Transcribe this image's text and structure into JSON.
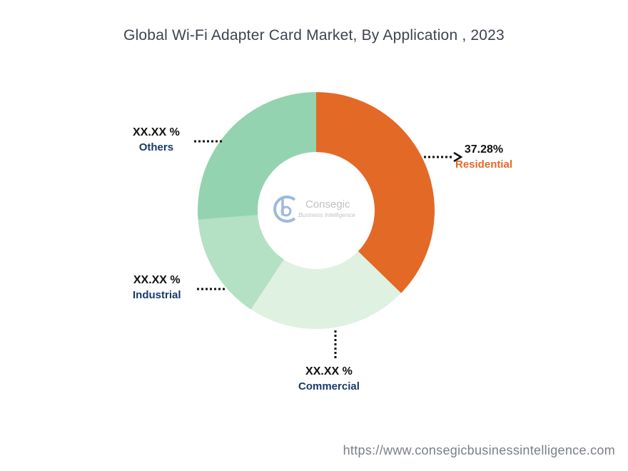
{
  "chart_data": {
    "type": "pie",
    "variant": "donut",
    "title": "Global Wi-Fi Adapter Card Market, By Application , 2023",
    "categories": [
      "Residential",
      "Commercial",
      "Industrial",
      "Others"
    ],
    "values": [
      37.28,
      22.0,
      14.5,
      26.22
    ],
    "value_labels": [
      "37.28%",
      "XX.XX %",
      "XX.XX %",
      "XX.XX %"
    ],
    "colors": [
      "#e36927",
      "#dff1e1",
      "#b4e0c4",
      "#93d3b0"
    ],
    "label_colors": [
      "#e36927",
      "#173b6c",
      "#173b6c",
      "#173b6c"
    ],
    "grid": false,
    "legend": "none"
  },
  "watermark": {
    "text": "Consegic",
    "subtext": "Business Intelligence"
  },
  "footer": {
    "url": "https://www.consegicbusinessintelligence.com"
  }
}
